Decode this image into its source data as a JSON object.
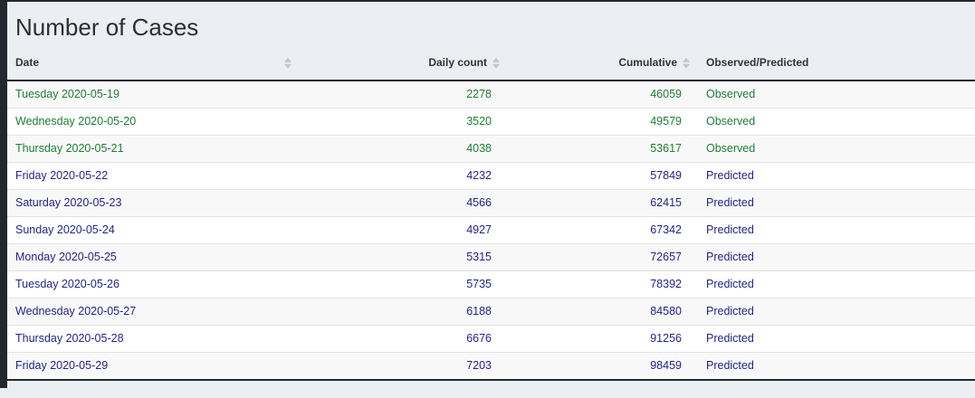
{
  "app": {
    "title": "Number of Cases"
  },
  "table": {
    "columns": [
      {
        "label": "Date",
        "sortable": true,
        "align": "left"
      },
      {
        "label": "Daily count",
        "sortable": true,
        "align": "right"
      },
      {
        "label": "Cumulative",
        "sortable": true,
        "align": "right"
      },
      {
        "label": "Observed/Predicted",
        "sortable": false,
        "align": "left"
      }
    ],
    "rows": [
      {
        "date": "Tuesday 2020-05-19",
        "daily_count": "2278",
        "cumulative": "46059",
        "status": "Observed"
      },
      {
        "date": "Wednesday 2020-05-20",
        "daily_count": "3520",
        "cumulative": "49579",
        "status": "Observed"
      },
      {
        "date": "Thursday 2020-05-21",
        "daily_count": "4038",
        "cumulative": "53617",
        "status": "Observed"
      },
      {
        "date": "Friday 2020-05-22",
        "daily_count": "4232",
        "cumulative": "57849",
        "status": "Predicted"
      },
      {
        "date": "Saturday 2020-05-23",
        "daily_count": "4566",
        "cumulative": "62415",
        "status": "Predicted"
      },
      {
        "date": "Sunday 2020-05-24",
        "daily_count": "4927",
        "cumulative": "67342",
        "status": "Predicted"
      },
      {
        "date": "Monday 2020-05-25",
        "daily_count": "5315",
        "cumulative": "72657",
        "status": "Predicted"
      },
      {
        "date": "Tuesday 2020-05-26",
        "daily_count": "5735",
        "cumulative": "78392",
        "status": "Predicted"
      },
      {
        "date": "Wednesday 2020-05-27",
        "daily_count": "6188",
        "cumulative": "84580",
        "status": "Predicted"
      },
      {
        "date": "Thursday 2020-05-28",
        "daily_count": "6676",
        "cumulative": "91256",
        "status": "Predicted"
      },
      {
        "date": "Friday 2020-05-29",
        "daily_count": "7203",
        "cumulative": "98459",
        "status": "Predicted"
      }
    ]
  },
  "colors": {
    "accent_dark": "#23272e",
    "panel_bg": "#ebeef2",
    "observed": "#1e7e34",
    "predicted": "#24248c",
    "row_stripe": "#f8f8f8",
    "row_border": "#e0e2e5",
    "header_text": "#333333",
    "title_text": "#2e2e2e",
    "sort_icon": "#c3c7cd"
  }
}
